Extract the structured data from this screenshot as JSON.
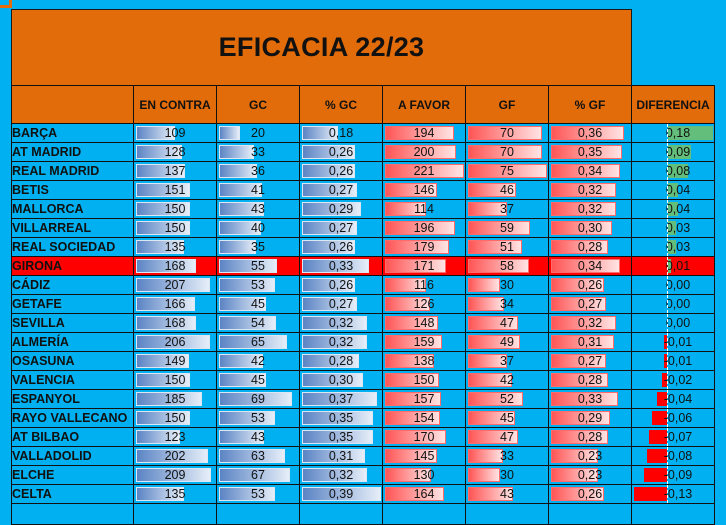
{
  "title": "EFICACIA 22/23",
  "headers": [
    "",
    "EN CONTRA",
    "GC",
    "% GC",
    "A FAVOR",
    "GF",
    "% GF",
    "DIFERENCIA"
  ],
  "colors": {
    "background": "#00b0f0",
    "header": "#e26b0a",
    "highlight_row": "#ff0000",
    "bar_blue": "#5b84c4",
    "bar_red": "#ff5555",
    "diff_positive": "#63be7b",
    "diff_negative": "#ff0000"
  },
  "rows": [
    {
      "team": "BARÇA",
      "en_contra": "109",
      "gc": "20",
      "pct_gc": "0,18",
      "a_favor": "194",
      "gf": "70",
      "pct_gf": "0,36",
      "diferencia": "0,18",
      "highlight": false
    },
    {
      "team": "AT MADRID",
      "en_contra": "128",
      "gc": "33",
      "pct_gc": "0,26",
      "a_favor": "200",
      "gf": "70",
      "pct_gf": "0,35",
      "diferencia": "0,09",
      "highlight": false
    },
    {
      "team": "REAL MADRID",
      "en_contra": "137",
      "gc": "36",
      "pct_gc": "0,26",
      "a_favor": "221",
      "gf": "75",
      "pct_gf": "0,34",
      "diferencia": "0,08",
      "highlight": false
    },
    {
      "team": "BETIS",
      "en_contra": "151",
      "gc": "41",
      "pct_gc": "0,27",
      "a_favor": "146",
      "gf": "46",
      "pct_gf": "0,32",
      "diferencia": "0,04",
      "highlight": false
    },
    {
      "team": "MALLORCA",
      "en_contra": "150",
      "gc": "43",
      "pct_gc": "0,29",
      "a_favor": "114",
      "gf": "37",
      "pct_gf": "0,32",
      "diferencia": "0,04",
      "highlight": false
    },
    {
      "team": "VILLARREAL",
      "en_contra": "150",
      "gc": "40",
      "pct_gc": "0,27",
      "a_favor": "196",
      "gf": "59",
      "pct_gf": "0,30",
      "diferencia": "0,03",
      "highlight": false
    },
    {
      "team": "REAL SOCIEDAD",
      "en_contra": "135",
      "gc": "35",
      "pct_gc": "0,26",
      "a_favor": "179",
      "gf": "51",
      "pct_gf": "0,28",
      "diferencia": "0,03",
      "highlight": false
    },
    {
      "team": "GIRONA",
      "en_contra": "168",
      "gc": "55",
      "pct_gc": "0,33",
      "a_favor": "171",
      "gf": "58",
      "pct_gf": "0,34",
      "diferencia": "0,01",
      "highlight": true
    },
    {
      "team": "CÁDIZ",
      "en_contra": "207",
      "gc": "53",
      "pct_gc": "0,26",
      "a_favor": "116",
      "gf": "30",
      "pct_gf": "0,26",
      "diferencia": "0,00",
      "highlight": false
    },
    {
      "team": "GETAFE",
      "en_contra": "166",
      "gc": "45",
      "pct_gc": "0,27",
      "a_favor": "126",
      "gf": "34",
      "pct_gf": "0,27",
      "diferencia": "0,00",
      "highlight": false
    },
    {
      "team": "SEVILLA",
      "en_contra": "168",
      "gc": "54",
      "pct_gc": "0,32",
      "a_favor": "148",
      "gf": "47",
      "pct_gf": "0,32",
      "diferencia": "0,00",
      "highlight": false
    },
    {
      "team": "ALMERÍA",
      "en_contra": "206",
      "gc": "65",
      "pct_gc": "0,32",
      "a_favor": "159",
      "gf": "49",
      "pct_gf": "0,31",
      "diferencia": "-0,01",
      "highlight": false
    },
    {
      "team": "OSASUNA",
      "en_contra": "149",
      "gc": "42",
      "pct_gc": "0,28",
      "a_favor": "138",
      "gf": "37",
      "pct_gf": "0,27",
      "diferencia": "-0,01",
      "highlight": false
    },
    {
      "team": "VALENCIA",
      "en_contra": "150",
      "gc": "45",
      "pct_gc": "0,30",
      "a_favor": "150",
      "gf": "42",
      "pct_gf": "0,28",
      "diferencia": "-0,02",
      "highlight": false
    },
    {
      "team": "ESPANYOL",
      "en_contra": "185",
      "gc": "69",
      "pct_gc": "0,37",
      "a_favor": "157",
      "gf": "52",
      "pct_gf": "0,33",
      "diferencia": "-0,04",
      "highlight": false
    },
    {
      "team": "RAYO VALLECANO",
      "en_contra": "150",
      "gc": "53",
      "pct_gc": "0,35",
      "a_favor": "154",
      "gf": "45",
      "pct_gf": "0,29",
      "diferencia": "-0,06",
      "highlight": false
    },
    {
      "team": "AT BILBAO",
      "en_contra": "123",
      "gc": "43",
      "pct_gc": "0,35",
      "a_favor": "170",
      "gf": "47",
      "pct_gf": "0,28",
      "diferencia": "-0,07",
      "highlight": false
    },
    {
      "team": "VALLADOLID",
      "en_contra": "202",
      "gc": "63",
      "pct_gc": "0,31",
      "a_favor": "145",
      "gf": "33",
      "pct_gf": "0,23",
      "diferencia": "-0,08",
      "highlight": false
    },
    {
      "team": "ELCHE",
      "en_contra": "209",
      "gc": "67",
      "pct_gc": "0,32",
      "a_favor": "130",
      "gf": "30",
      "pct_gf": "0,23",
      "diferencia": "-0,09",
      "highlight": false
    },
    {
      "team": "CELTA",
      "en_contra": "135",
      "gc": "53",
      "pct_gc": "0,39",
      "a_favor": "164",
      "gf": "43",
      "pct_gf": "0,26",
      "diferencia": "-0,13",
      "highlight": false
    }
  ]
}
